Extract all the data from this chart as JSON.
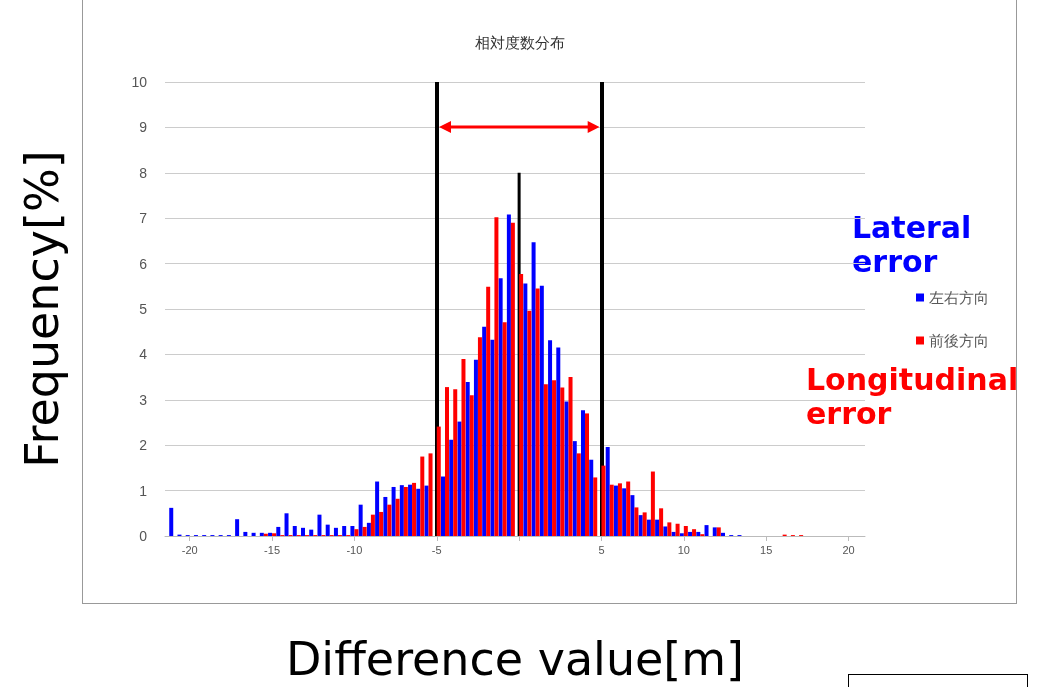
{
  "chart_data": {
    "type": "bar",
    "title": "相対度数分布",
    "xlabel": "Difference value[m]",
    "ylabel": "Frequency[%]",
    "x": [
      -21,
      -20.5,
      -20,
      -19.5,
      -19,
      -18.5,
      -18,
      -17.5,
      -17,
      -16.5,
      -16,
      -15.5,
      -15,
      -14.5,
      -14,
      -13.5,
      -13,
      -12.5,
      -12,
      -11.5,
      -11,
      -10.5,
      -10,
      -9.5,
      -9,
      -8.5,
      -8,
      -7.5,
      -7,
      -6.5,
      -6,
      -5.5,
      -5,
      -4.5,
      -4,
      -3.5,
      -3,
      -2.5,
      -2,
      -1.5,
      -1,
      -0.5,
      0,
      0.5,
      1,
      1.5,
      2,
      2.5,
      3,
      3.5,
      4,
      4.5,
      5,
      5.5,
      6,
      6.5,
      7,
      7.5,
      8,
      8.5,
      9,
      9.5,
      10,
      10.5,
      11,
      11.5,
      12,
      12.5,
      13,
      13.5,
      14,
      14.5,
      15,
      15.5,
      16,
      16.5,
      17
    ],
    "series": [
      {
        "name": "左右方向",
        "color": "#0000ff",
        "values": [
          0.62,
          0.03,
          0.02,
          0.02,
          0.02,
          0.02,
          0.02,
          0.02,
          0.37,
          0.09,
          0.07,
          0.07,
          0.07,
          0.2,
          0.5,
          0.22,
          0.18,
          0.14,
          0.47,
          0.25,
          0.18,
          0.22,
          0.22,
          0.69,
          0.29,
          1.2,
          0.86,
          1.08,
          1.12,
          1.13,
          1.04,
          1.11,
          null,
          1.31,
          2.12,
          2.52,
          3.39,
          3.88,
          4.61,
          4.32,
          5.68,
          7.08,
          null,
          5.56,
          6.47,
          5.51,
          4.31,
          4.15,
          2.96,
          2.09,
          2.77,
          1.68,
          null,
          1.96,
          1.11,
          1.05,
          0.9,
          0.46,
          0.36,
          0.36,
          0.21,
          0.09,
          0.06,
          0.09,
          0.09,
          0.24,
          0.19,
          0.07,
          0.02,
          0.02,
          0,
          0,
          0,
          0,
          0,
          0,
          0
        ]
      },
      {
        "name": "前後方向",
        "color": "#ff0000",
        "values": [
          0,
          0,
          0,
          0,
          0,
          0,
          0,
          0,
          0,
          0,
          0,
          0.05,
          0.06,
          0.02,
          0.02,
          0.02,
          0.02,
          0.02,
          0.02,
          0.02,
          0.02,
          0.02,
          0.15,
          0.2,
          0.47,
          0.53,
          0.69,
          0.82,
          1.08,
          1.17,
          1.75,
          1.82,
          2.41,
          3.28,
          3.23,
          3.9,
          3.1,
          4.38,
          5.49,
          7.02,
          4.71,
          6.9,
          5.77,
          4.96,
          5.45,
          3.34,
          3.43,
          3.27,
          3.5,
          1.82,
          2.7,
          1.29,
          1.55,
          1.13,
          1.16,
          1.2,
          0.63,
          0.52,
          1.42,
          0.61,
          0.3,
          0.27,
          0.22,
          0.15,
          0.04,
          0,
          0.19,
          0,
          0,
          0,
          0,
          0,
          0,
          0,
          0.03,
          0.02,
          0.02
        ]
      },
      {
        "type": "line",
        "color": "#000000",
        "marker": "none",
        "x": [
          0,
          0
        ],
        "values": [
          0,
          8
        ]
      }
    ],
    "xlim": [
      -21.5,
      21
    ],
    "xticks": [
      -20,
      -15,
      -10,
      -5,
      {
        "value": 0,
        "label": null
      },
      5,
      10,
      15,
      20
    ],
    "ylim": [
      0,
      10
    ],
    "yticks": [
      0,
      1,
      2,
      3,
      4,
      5,
      6,
      7,
      8,
      9,
      10
    ],
    "grid": "y",
    "legend": "right",
    "ref_lines": [
      {
        "axis": "x",
        "value": -5,
        "color": "#000000"
      },
      {
        "axis": "x",
        "value": 5,
        "color": "#000000"
      }
    ],
    "annotations": [
      "Lateral error",
      "Longitudinal error"
    ]
  }
}
